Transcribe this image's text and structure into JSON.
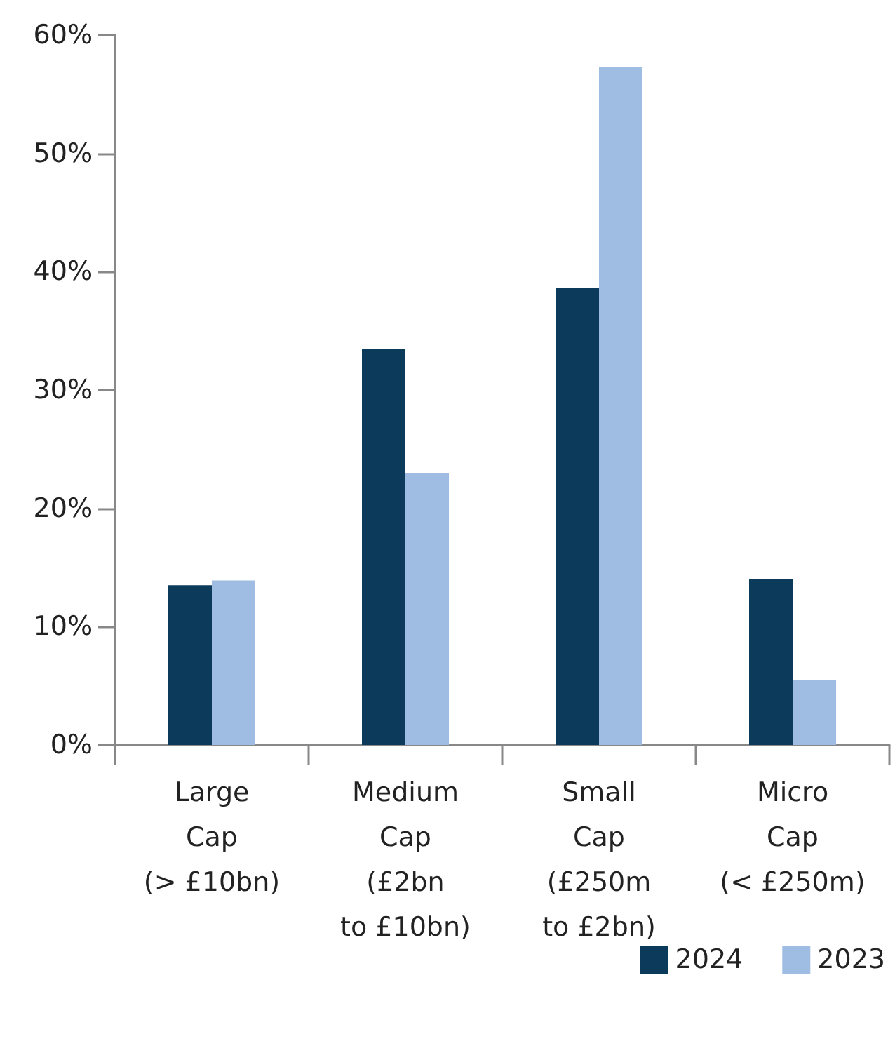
{
  "chart_data": {
    "type": "bar",
    "categories": [
      "Large\nCap\n(> £10bn)",
      "Medium\nCap\n(£2bn\nto £10bn)",
      "Small\nCap\n(£250m\nto £2bn)",
      "Micro\nCap\n(< £250m)"
    ],
    "series": [
      {
        "name": "2024",
        "color": "#0b3a5b",
        "values": [
          13.5,
          33.5,
          38.6,
          14.0
        ]
      },
      {
        "name": "2023",
        "color": "#9fbce2",
        "values": [
          13.9,
          23.0,
          57.3,
          5.5
        ]
      }
    ],
    "ylim": [
      0,
      60
    ],
    "yticks": [
      {
        "value": 0,
        "label": "0%"
      },
      {
        "value": 10,
        "label": "10%"
      },
      {
        "value": 20,
        "label": "20%"
      },
      {
        "value": 30,
        "label": "30%"
      },
      {
        "value": 40,
        "label": "40%"
      },
      {
        "value": 50,
        "label": "50%"
      },
      {
        "value": 60,
        "label": "60%"
      }
    ],
    "grid": false,
    "legend": "bottom right"
  }
}
